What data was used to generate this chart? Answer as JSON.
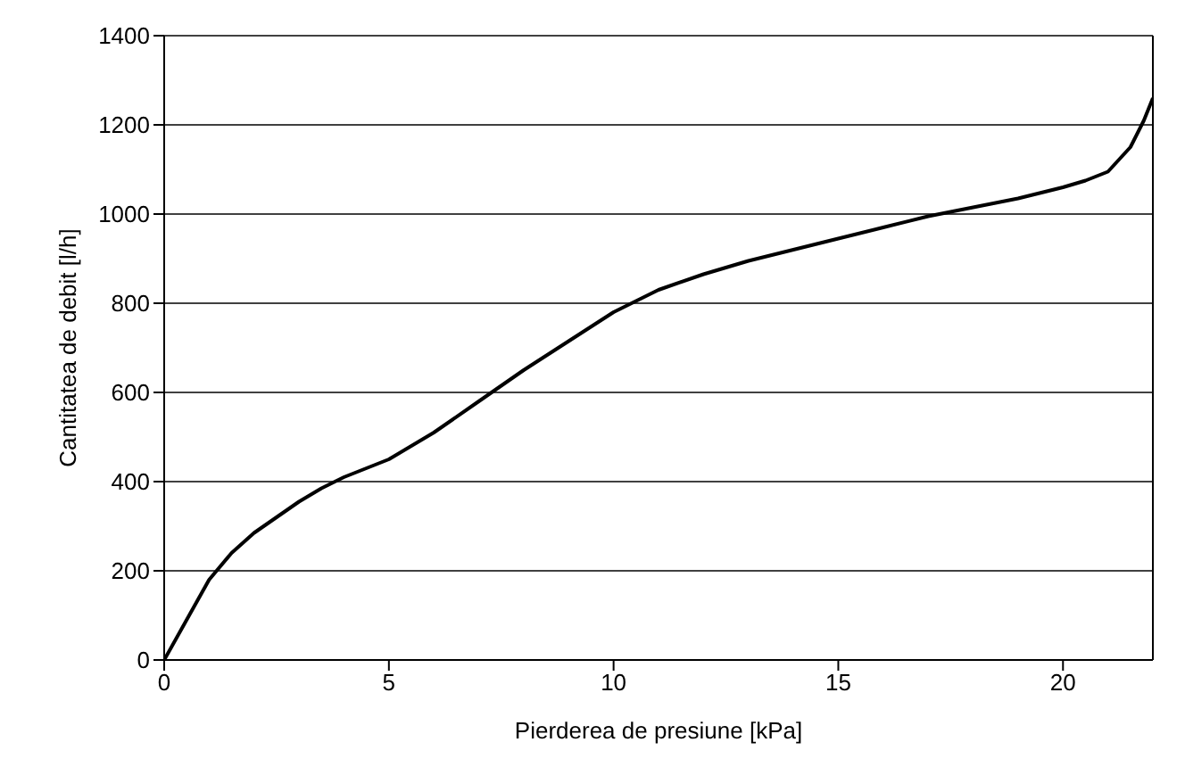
{
  "chart_data": {
    "type": "line",
    "xlabel": "Pierderea de presiune [kPa]",
    "ylabel": "Cantitatea de debit [l/h]",
    "x": [
      0,
      0.5,
      1,
      1.5,
      2,
      2.5,
      3,
      3.5,
      4,
      5,
      6,
      7,
      8,
      9,
      10,
      11,
      12,
      13,
      14,
      15,
      16,
      17,
      18,
      19,
      20,
      20.5,
      21,
      21.5,
      21.8,
      22
    ],
    "series": [
      {
        "color": "#000000",
        "values": [
          0,
          90,
          180,
          240,
          285,
          320,
          355,
          385,
          410,
          450,
          510,
          580,
          650,
          715,
          780,
          830,
          865,
          895,
          920,
          945,
          970,
          995,
          1015,
          1035,
          1060,
          1075,
          1095,
          1150,
          1210,
          1260
        ]
      }
    ],
    "xlim": [
      0,
      22
    ],
    "xticks": [
      0,
      5,
      10,
      15,
      20
    ],
    "ylim": [
      0,
      1400
    ],
    "yticks": [
      0,
      200,
      400,
      600,
      800,
      1000,
      1200,
      1400
    ],
    "grid": "y",
    "legend": false,
    "marker": "none",
    "line_style": "solid"
  }
}
